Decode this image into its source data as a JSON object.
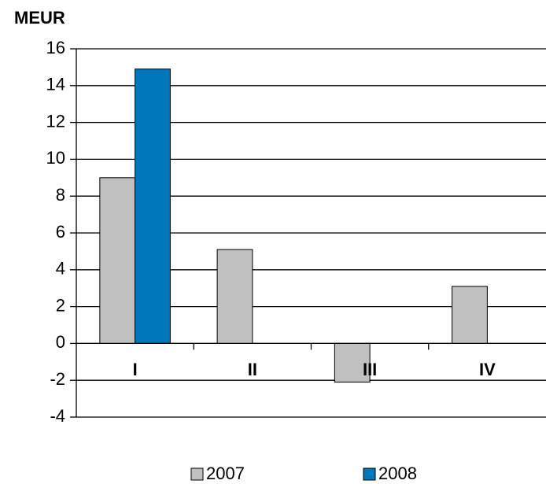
{
  "chart_data": {
    "type": "bar",
    "y_axis_title": "MEUR",
    "categories": [
      "I",
      "II",
      "III",
      "IV"
    ],
    "series": [
      {
        "name": "2007",
        "color": "#c0c0c0",
        "values": [
          9,
          5.1,
          -2.1,
          3.1
        ]
      },
      {
        "name": "2008",
        "color": "#0077bb",
        "values": [
          14.9,
          null,
          null,
          null
        ]
      }
    ],
    "ylim": [
      -4,
      16
    ],
    "yticks": [
      -4,
      -2,
      0,
      2,
      4,
      6,
      8,
      10,
      12,
      14,
      16
    ],
    "grid": true,
    "legend": "bottom"
  }
}
